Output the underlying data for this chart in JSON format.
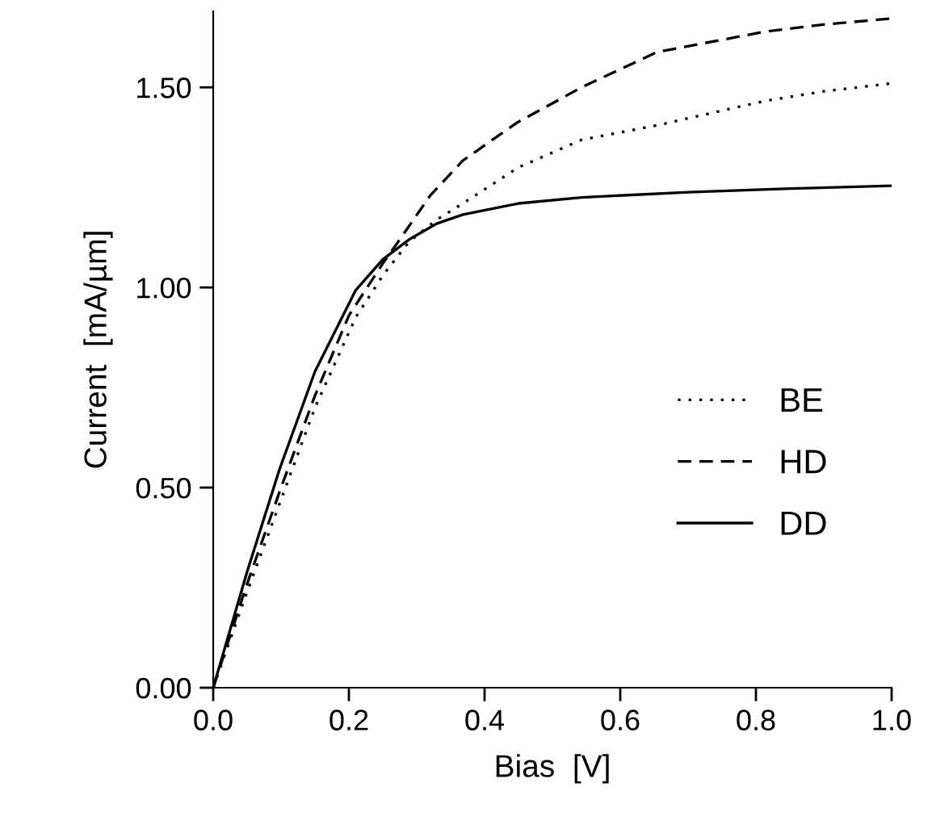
{
  "chart_data": {
    "type": "line",
    "xlabel": "Bias  [V]",
    "ylabel": "Current  [mA/µm]",
    "xlim": [
      0,
      1.0
    ],
    "ylim": [
      0,
      1.69
    ],
    "xticks": [
      {
        "value": 0,
        "label": "0.0"
      },
      {
        "value": 0.2,
        "label": "0.2"
      },
      {
        "value": 0.4,
        "label": "0.4"
      },
      {
        "value": 0.6,
        "label": "0.6"
      },
      {
        "value": 0.8,
        "label": "0.8"
      },
      {
        "value": 1.0,
        "label": "1.0"
      }
    ],
    "yticks": [
      {
        "value": 0,
        "label": "0.00"
      },
      {
        "value": 0.5,
        "label": "0.50"
      },
      {
        "value": 1.0,
        "label": "1.00"
      },
      {
        "value": 1.5,
        "label": "1.50"
      }
    ],
    "grid": false,
    "legend": "right",
    "series": [
      {
        "name": "BE",
        "color": "#000000",
        "line_style": "dotted",
        "x": [
          0,
          0.05,
          0.1,
          0.15,
          0.21,
          0.25,
          0.289,
          0.33,
          0.368,
          0.45,
          0.543,
          0.654,
          0.813,
          0.9,
          1.0
        ],
        "values": [
          0,
          0.24,
          0.47,
          0.7,
          0.925,
          1.03,
          1.115,
          1.17,
          1.21,
          1.3,
          1.369,
          1.405,
          1.466,
          1.49,
          1.51
        ]
      },
      {
        "name": "HD",
        "color": "#000000",
        "line_style": "dashed",
        "x": [
          0,
          0.05,
          0.1,
          0.15,
          0.2,
          0.25,
          0.273,
          0.32,
          0.368,
          0.448,
          0.543,
          0.654,
          0.813,
          0.9,
          1.0
        ],
        "values": [
          0,
          0.26,
          0.5,
          0.73,
          0.93,
          1.06,
          1.115,
          1.23,
          1.317,
          1.412,
          1.5,
          1.588,
          1.639,
          1.657,
          1.672
        ]
      },
      {
        "name": "DD",
        "color": "#000000",
        "line_style": "solid",
        "x": [
          0,
          0.05,
          0.098,
          0.15,
          0.21,
          0.25,
          0.289,
          0.33,
          0.368,
          0.45,
          0.543,
          0.7,
          0.85,
          1.0
        ],
        "values": [
          0,
          0.29,
          0.547,
          0.79,
          0.993,
          1.07,
          1.12,
          1.16,
          1.182,
          1.21,
          1.225,
          1.238,
          1.247,
          1.254
        ]
      }
    ]
  }
}
